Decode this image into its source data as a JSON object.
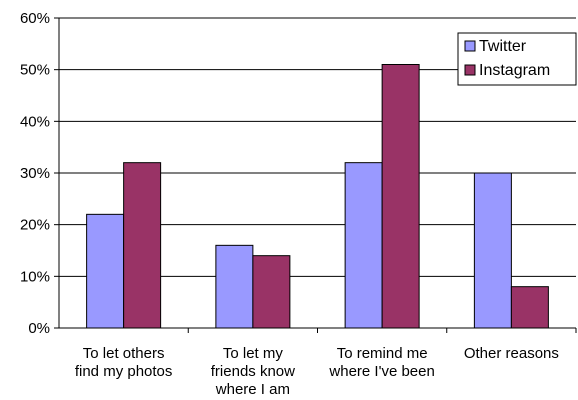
{
  "chart_data": {
    "type": "bar",
    "categories": [
      [
        "To let others",
        "find my photos"
      ],
      [
        "To let my",
        "friends know",
        "where I am"
      ],
      [
        "To remind me",
        "where I've been"
      ],
      [
        "Other reasons"
      ]
    ],
    "series": [
      {
        "name": "Twitter",
        "values": [
          22,
          16,
          32,
          30
        ],
        "color": "#9999ff"
      },
      {
        "name": "Instagram",
        "values": [
          32,
          14,
          51,
          8
        ],
        "color": "#993366"
      }
    ],
    "yticks": [
      "0%",
      "10%",
      "20%",
      "30%",
      "40%",
      "50%",
      "60%"
    ],
    "ylim": [
      0,
      60
    ],
    "grid": true,
    "legend": "top-right",
    "title": "",
    "xlabel": "",
    "ylabel": ""
  }
}
